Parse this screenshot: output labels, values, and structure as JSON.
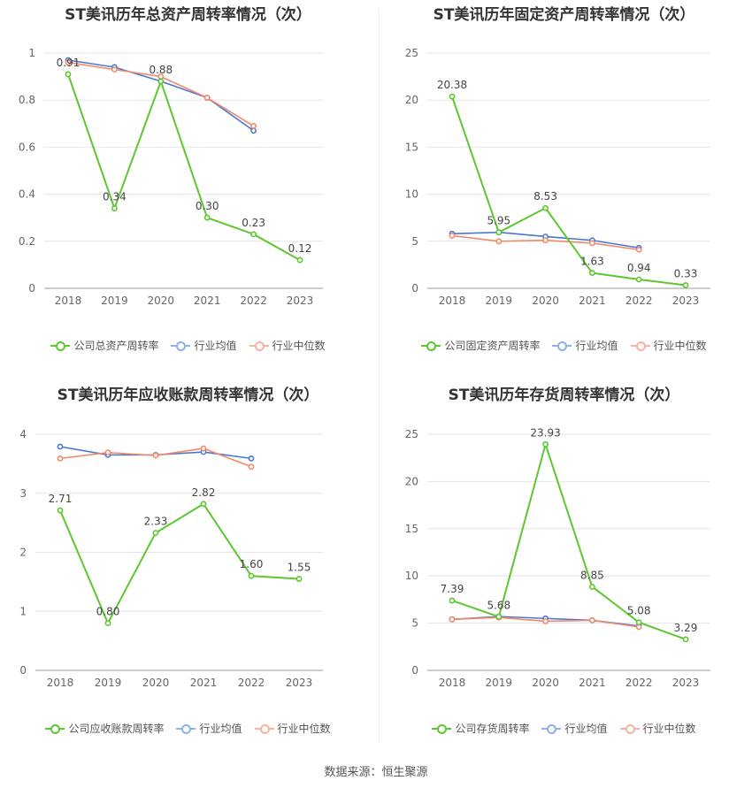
{
  "footer": "数据来源：恒生聚源",
  "colors": {
    "company": "#5cc72f",
    "avg": "#4a77d4",
    "median": "#f08a6a"
  },
  "chart_data": [
    {
      "type": "line",
      "title": "ST美讯历年总资产周转率情况（次）",
      "x": [
        "2018",
        "2019",
        "2020",
        "2021",
        "2022",
        "2023"
      ],
      "ylim": [
        0,
        1
      ],
      "yticks": [
        "0",
        "0.2",
        "0.4",
        "0.6",
        "0.8",
        "1"
      ],
      "series": [
        {
          "name": "公司总资产周转率",
          "values": [
            0.91,
            0.34,
            0.88,
            0.3,
            0.23,
            0.12
          ],
          "labels": [
            "0.91",
            "0.34",
            "0.88",
            "0.30",
            "0.23",
            "0.12"
          ]
        },
        {
          "name": "行业均值",
          "values": [
            0.97,
            0.94,
            0.88,
            0.81,
            0.67,
            null
          ]
        },
        {
          "name": "行业中位数",
          "values": [
            0.96,
            0.93,
            0.9,
            0.81,
            0.69,
            null
          ]
        }
      ]
    },
    {
      "type": "line",
      "title": "ST美讯历年固定资产周转率情况（次）",
      "x": [
        "2018",
        "2019",
        "2020",
        "2021",
        "2022",
        "2023"
      ],
      "ylim": [
        0,
        25
      ],
      "yticks": [
        "0",
        "5",
        "10",
        "15",
        "20",
        "25"
      ],
      "series": [
        {
          "name": "公司固定资产周转率",
          "values": [
            20.38,
            5.95,
            8.53,
            1.63,
            0.94,
            0.33
          ],
          "labels": [
            "20.38",
            "5.95",
            "8.53",
            "1.63",
            "0.94",
            "0.33"
          ]
        },
        {
          "name": "行业均值",
          "values": [
            5.8,
            5.95,
            5.5,
            5.1,
            4.3,
            null
          ]
        },
        {
          "name": "行业中位数",
          "values": [
            5.6,
            5.0,
            5.1,
            4.8,
            4.1,
            null
          ]
        }
      ]
    },
    {
      "type": "line",
      "title": "ST美讯历年应收账款周转率情况（次）",
      "x": [
        "2018",
        "2019",
        "2020",
        "2021",
        "2022",
        "2023"
      ],
      "ylim": [
        0,
        4
      ],
      "yticks": [
        "0",
        "1",
        "2",
        "3",
        "4"
      ],
      "series": [
        {
          "name": "公司应收账款周转率",
          "values": [
            2.71,
            0.8,
            2.33,
            2.82,
            1.6,
            1.55
          ],
          "labels": [
            "2.71",
            "0.80",
            "2.33",
            "2.82",
            "1.60",
            "1.55"
          ]
        },
        {
          "name": "行业均值",
          "values": [
            3.79,
            3.65,
            3.65,
            3.7,
            3.59,
            null
          ]
        },
        {
          "name": "行业中位数",
          "values": [
            3.59,
            3.69,
            3.64,
            3.76,
            3.45,
            null
          ]
        }
      ]
    },
    {
      "type": "line",
      "title": "ST美讯历年存货周转率情况（次）",
      "x": [
        "2018",
        "2019",
        "2020",
        "2021",
        "2022",
        "2023"
      ],
      "ylim": [
        0,
        25
      ],
      "yticks": [
        "0",
        "5",
        "10",
        "15",
        "20",
        "25"
      ],
      "series": [
        {
          "name": "公司存货周转率",
          "values": [
            7.39,
            5.68,
            23.93,
            8.85,
            5.08,
            3.29
          ],
          "labels": [
            "7.39",
            "5.68",
            "23.93",
            "8.85",
            "5.08",
            "3.29"
          ]
        },
        {
          "name": "行业均值",
          "values": [
            5.4,
            5.7,
            5.5,
            5.3,
            4.7,
            null
          ]
        },
        {
          "name": "行业中位数",
          "values": [
            5.4,
            5.6,
            5.2,
            5.3,
            4.6,
            null
          ]
        }
      ]
    }
  ]
}
